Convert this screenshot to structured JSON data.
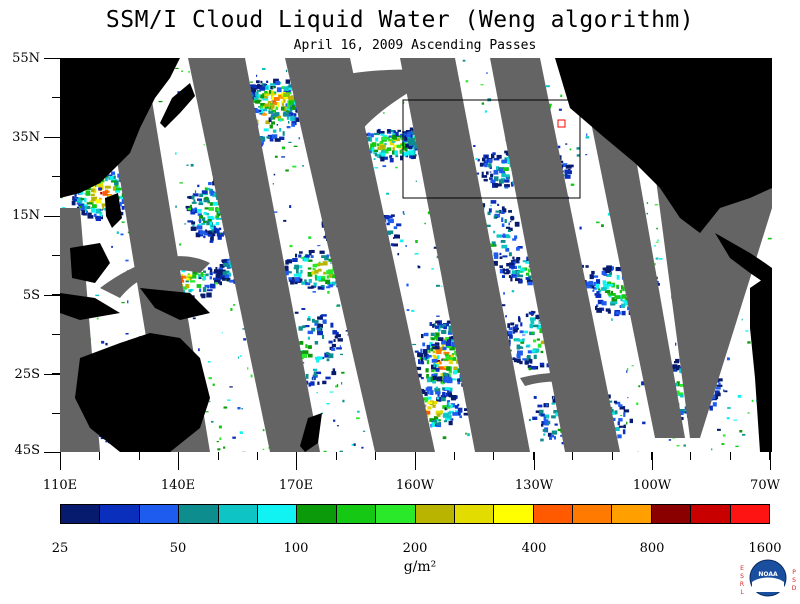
{
  "title": "SSM/I Cloud Liquid Water (Weng algorithm)",
  "subtitle": "April 16, 2009  Ascending Passes",
  "lat_labels": [
    "55N",
    "35N",
    "15N",
    "5S",
    "25S",
    "45S"
  ],
  "lon_labels": [
    "110E",
    "140E",
    "170E",
    "160W",
    "130W",
    "100W",
    "70W"
  ],
  "colorbar": {
    "colors": [
      "#061a6e",
      "#0b2fbd",
      "#1e5cf0",
      "#0e8d8f",
      "#0fc4c4",
      "#11f2f2",
      "#0a9a0a",
      "#14c814",
      "#2ae82a",
      "#b8b400",
      "#e2dc00",
      "#ffff00",
      "#ff5a00",
      "#ff7a00",
      "#ffa000",
      "#8a0000",
      "#c80000",
      "#ff1414"
    ],
    "labels": [
      "25",
      "50",
      "100",
      "200",
      "400",
      "800",
      "1600"
    ]
  },
  "units": "g/m²",
  "logo": {
    "left_text": "ESRL",
    "right_text": "PSD",
    "center_text": "NOAA"
  },
  "colors": {
    "land": "#000000",
    "no_data_swath": "#646464",
    "ocean_clear": "#ffffff"
  }
}
